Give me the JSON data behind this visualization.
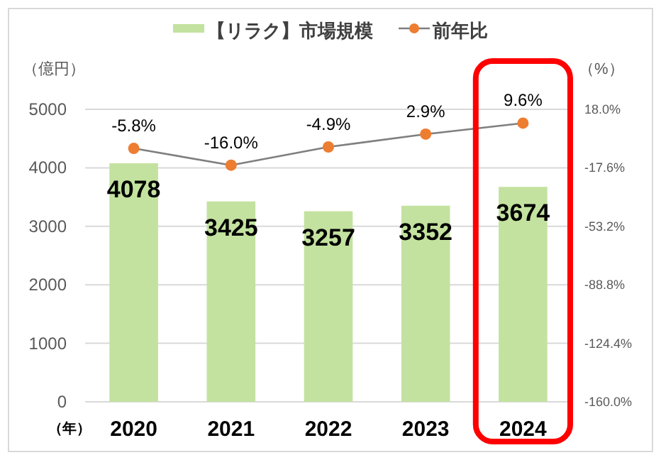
{
  "chart_data": {
    "type": "bar",
    "legend": "top",
    "grid": "y",
    "xlabel": "（年）",
    "ylabel": "（億円）",
    "y2label": "（%）",
    "categories": [
      "2020",
      "2021",
      "2022",
      "2023",
      "2024"
    ],
    "ylim": [
      0,
      5000
    ],
    "yticks": [
      0,
      1000,
      2000,
      3000,
      4000,
      5000
    ],
    "y2lim": [
      -160,
      18
    ],
    "y2ticks": [
      {
        "value": -160,
        "label": "-160.0%"
      },
      {
        "value": -124.4,
        "label": "-124.4%"
      },
      {
        "value": -88.8,
        "label": "-88.8%"
      },
      {
        "value": -53.2,
        "label": "-53.2%"
      },
      {
        "value": -17.6,
        "label": "-17.6%"
      },
      {
        "value": 18,
        "label": "18.0%"
      }
    ],
    "series": [
      {
        "name": "【リラク】市場規模",
        "color": "#c3e29f",
        "values": [
          4078,
          3425,
          3257,
          3352,
          3674
        ],
        "value_labels": [
          "4078",
          "3425",
          "3257",
          "3352",
          "3674"
        ]
      },
      {
        "name": "前年比",
        "type": "line",
        "axis": "y2",
        "marker": "circle",
        "color": "#ed7d31",
        "values": [
          -5.8,
          -16.0,
          -4.9,
          2.9,
          9.6
        ],
        "value_labels": [
          "-5.8%",
          "-16.0%",
          "-4.9%",
          "2.9%",
          "9.6%"
        ]
      }
    ]
  }
}
